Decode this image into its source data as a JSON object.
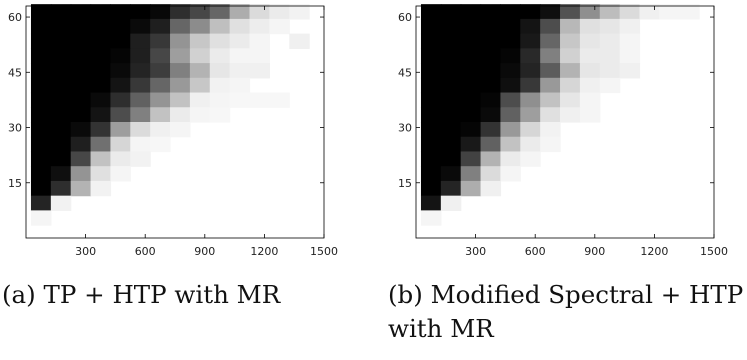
{
  "chart_data": [
    {
      "type": "heatmap",
      "caption": "(a) TP + HTP with MR",
      "x_ticks": [
        300,
        600,
        900,
        1200,
        1500
      ],
      "y_ticks": [
        15,
        30,
        45,
        60
      ],
      "xlim": [
        0,
        1500
      ],
      "ylim": [
        0,
        63
      ],
      "grid": false,
      "colormap": "gray (black = high, white = low)",
      "x_centers": [
        75,
        175,
        275,
        375,
        475,
        575,
        675,
        775,
        875,
        975,
        1075,
        1175,
        1275,
        1375
      ],
      "y_centers": [
        61.5,
        57.5,
        53.5,
        49.5,
        45.5,
        41.5,
        37.5,
        33.5,
        29.5,
        25.5,
        21.5,
        17.5,
        13.5,
        9.5,
        5.5,
        1.5
      ],
      "values": [
        [
          1.0,
          1.0,
          1.0,
          1.0,
          1.0,
          1.0,
          0.97,
          0.82,
          0.72,
          0.6,
          0.32,
          0.14,
          0.08,
          0.05
        ],
        [
          1.0,
          1.0,
          1.0,
          1.0,
          1.0,
          0.96,
          0.88,
          0.6,
          0.45,
          0.25,
          0.12,
          0.07,
          0.04,
          0.0
        ],
        [
          1.0,
          1.0,
          1.0,
          1.0,
          1.0,
          0.88,
          0.78,
          0.42,
          0.22,
          0.12,
          0.08,
          0.04,
          0.0,
          0.06
        ],
        [
          1.0,
          1.0,
          1.0,
          1.0,
          0.98,
          0.88,
          0.72,
          0.38,
          0.18,
          0.08,
          0.04,
          0.04,
          0.0,
          0.0
        ],
        [
          1.0,
          1.0,
          1.0,
          1.0,
          0.96,
          0.86,
          0.76,
          0.5,
          0.3,
          0.1,
          0.06,
          0.06,
          0.0,
          0.0
        ],
        [
          1.0,
          1.0,
          1.0,
          1.0,
          0.92,
          0.78,
          0.6,
          0.4,
          0.22,
          0.05,
          0.04,
          0.0,
          0.0,
          0.0
        ],
        [
          1.0,
          1.0,
          1.0,
          0.96,
          0.82,
          0.62,
          0.42,
          0.24,
          0.06,
          0.04,
          0.03,
          0.03,
          0.03,
          0.0
        ],
        [
          1.0,
          1.0,
          1.0,
          0.92,
          0.7,
          0.5,
          0.24,
          0.08,
          0.04,
          0.03,
          0.0,
          0.0,
          0.0,
          0.0
        ],
        [
          1.0,
          1.0,
          0.96,
          0.8,
          0.38,
          0.14,
          0.06,
          0.04,
          0.0,
          0.0,
          0.0,
          0.0,
          0.0,
          0.0
        ],
        [
          1.0,
          1.0,
          0.88,
          0.56,
          0.16,
          0.04,
          0.03,
          0.0,
          0.0,
          0.0,
          0.0,
          0.0,
          0.0,
          0.0
        ],
        [
          1.0,
          1.0,
          0.72,
          0.24,
          0.08,
          0.05,
          0.0,
          0.0,
          0.0,
          0.0,
          0.0,
          0.0,
          0.0,
          0.0
        ],
        [
          1.0,
          0.94,
          0.42,
          0.12,
          0.04,
          0.0,
          0.0,
          0.0,
          0.0,
          0.0,
          0.0,
          0.0,
          0.0,
          0.0
        ],
        [
          1.0,
          0.82,
          0.3,
          0.05,
          0.0,
          0.0,
          0.0,
          0.0,
          0.0,
          0.0,
          0.0,
          0.0,
          0.0,
          0.0
        ],
        [
          0.86,
          0.05,
          0.0,
          0.0,
          0.0,
          0.0,
          0.0,
          0.0,
          0.0,
          0.0,
          0.0,
          0.0,
          0.0,
          0.0
        ],
        [
          0.04,
          0.0,
          0.0,
          0.0,
          0.0,
          0.0,
          0.0,
          0.0,
          0.0,
          0.0,
          0.0,
          0.0,
          0.0,
          0.0
        ],
        [
          0.0,
          0.0,
          0.0,
          0.0,
          0.0,
          0.0,
          0.0,
          0.0,
          0.0,
          0.0,
          0.0,
          0.0,
          0.0,
          0.0
        ]
      ]
    },
    {
      "type": "heatmap",
      "caption": "(b) Modified Spectral + HTP with MR",
      "x_ticks": [
        300,
        600,
        900,
        1200,
        1500
      ],
      "y_ticks": [
        15,
        30,
        45,
        60
      ],
      "xlim": [
        0,
        1500
      ],
      "ylim": [
        0,
        63
      ],
      "grid": false,
      "colormap": "gray (black = high, white = low)",
      "x_centers": [
        75,
        175,
        275,
        375,
        475,
        575,
        675,
        775,
        875,
        975,
        1075,
        1175,
        1275,
        1375
      ],
      "y_centers": [
        61.5,
        57.5,
        53.5,
        49.5,
        45.5,
        41.5,
        37.5,
        33.5,
        29.5,
        25.5,
        21.5,
        17.5,
        13.5,
        9.5,
        5.5,
        1.5
      ],
      "values": [
        [
          1.0,
          1.0,
          1.0,
          1.0,
          1.0,
          1.0,
          0.94,
          0.68,
          0.44,
          0.26,
          0.14,
          0.06,
          0.04,
          0.04
        ],
        [
          1.0,
          1.0,
          1.0,
          1.0,
          1.0,
          0.92,
          0.7,
          0.28,
          0.12,
          0.1,
          0.06,
          0.0,
          0.0,
          0.0
        ],
        [
          1.0,
          1.0,
          1.0,
          1.0,
          1.0,
          0.9,
          0.6,
          0.22,
          0.1,
          0.08,
          0.04,
          0.0,
          0.0,
          0.0
        ],
        [
          1.0,
          1.0,
          1.0,
          1.0,
          0.98,
          0.84,
          0.5,
          0.18,
          0.08,
          0.08,
          0.04,
          0.0,
          0.0,
          0.0
        ],
        [
          1.0,
          1.0,
          1.0,
          1.0,
          0.96,
          0.86,
          0.64,
          0.3,
          0.1,
          0.08,
          0.06,
          0.0,
          0.0,
          0.0
        ],
        [
          1.0,
          1.0,
          1.0,
          1.0,
          0.94,
          0.78,
          0.4,
          0.16,
          0.06,
          0.04,
          0.0,
          0.0,
          0.0,
          0.0
        ],
        [
          1.0,
          1.0,
          1.0,
          0.98,
          0.7,
          0.44,
          0.24,
          0.1,
          0.04,
          0.0,
          0.0,
          0.0,
          0.0,
          0.0
        ],
        [
          1.0,
          1.0,
          1.0,
          0.96,
          0.62,
          0.38,
          0.12,
          0.06,
          0.04,
          0.0,
          0.0,
          0.0,
          0.0,
          0.0
        ],
        [
          1.0,
          1.0,
          0.98,
          0.8,
          0.4,
          0.16,
          0.05,
          0.0,
          0.0,
          0.0,
          0.0,
          0.0,
          0.0,
          0.0
        ],
        [
          1.0,
          1.0,
          0.9,
          0.62,
          0.24,
          0.08,
          0.04,
          0.0,
          0.0,
          0.0,
          0.0,
          0.0,
          0.0,
          0.0
        ],
        [
          1.0,
          1.0,
          0.74,
          0.3,
          0.08,
          0.04,
          0.0,
          0.0,
          0.0,
          0.0,
          0.0,
          0.0,
          0.0,
          0.0
        ],
        [
          1.0,
          0.96,
          0.5,
          0.14,
          0.04,
          0.0,
          0.0,
          0.0,
          0.0,
          0.0,
          0.0,
          0.0,
          0.0,
          0.0
        ],
        [
          1.0,
          0.86,
          0.32,
          0.06,
          0.0,
          0.0,
          0.0,
          0.0,
          0.0,
          0.0,
          0.0,
          0.0,
          0.0,
          0.0
        ],
        [
          0.92,
          0.06,
          0.0,
          0.0,
          0.0,
          0.0,
          0.0,
          0.0,
          0.0,
          0.0,
          0.0,
          0.0,
          0.0,
          0.0
        ],
        [
          0.04,
          0.0,
          0.0,
          0.0,
          0.0,
          0.0,
          0.0,
          0.0,
          0.0,
          0.0,
          0.0,
          0.0,
          0.0,
          0.0
        ],
        [
          0.0,
          0.0,
          0.0,
          0.0,
          0.0,
          0.0,
          0.0,
          0.0,
          0.0,
          0.0,
          0.0,
          0.0,
          0.0,
          0.0
        ]
      ]
    }
  ]
}
